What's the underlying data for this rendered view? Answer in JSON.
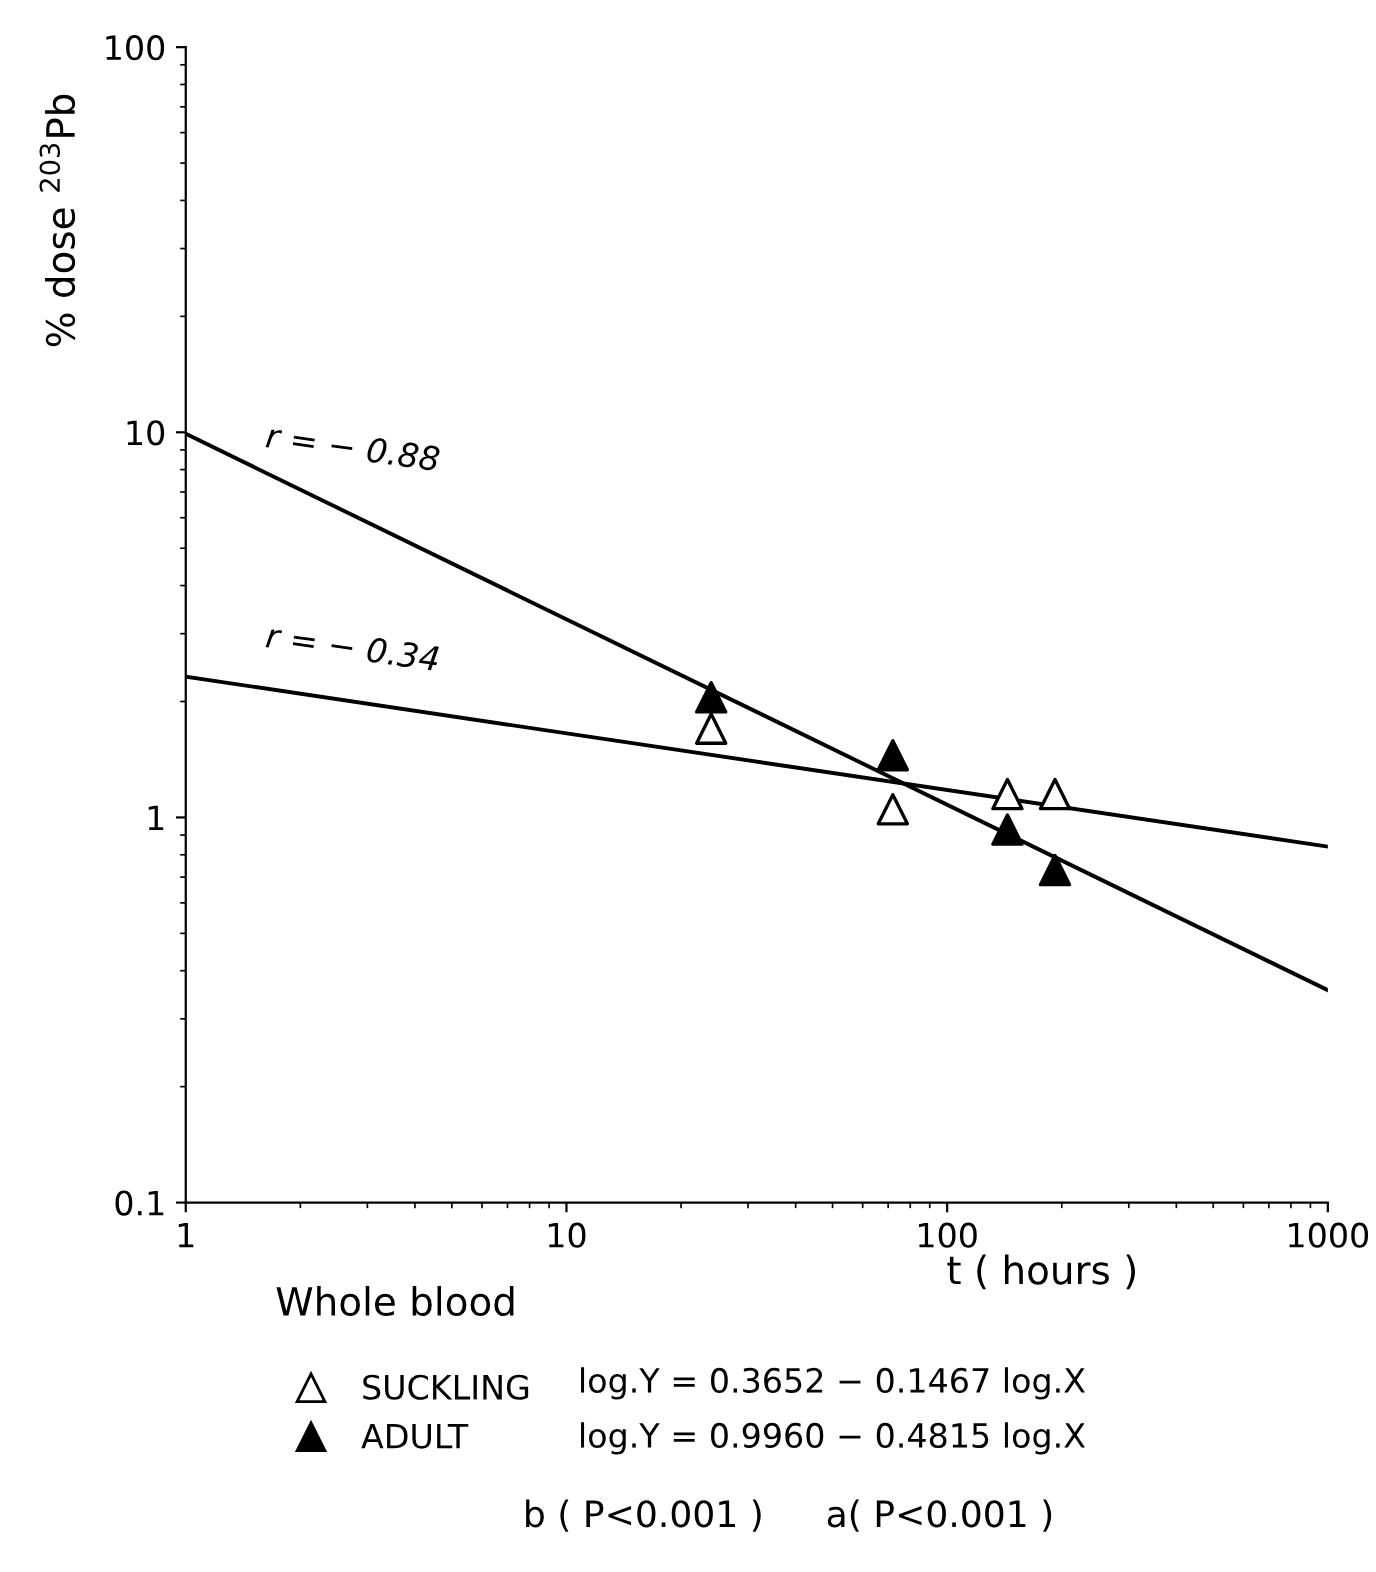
{
  "chart_data": {
    "type": "scatter",
    "ylabel": "% dose $^{203}$Pb",
    "xlabel": "t ( hours )",
    "log": "xy",
    "xlim": [
      1,
      1000
    ],
    "ylim": [
      0.1,
      100
    ],
    "xticks": [
      1,
      10,
      100,
      1000
    ],
    "yticks": [
      0.1,
      1,
      10,
      100
    ],
    "grid": false,
    "legend": "bottom",
    "series": [
      {
        "name": "SUCKLING",
        "marker": "triangle",
        "color": "#ffffff",
        "x": [
          24,
          72,
          144,
          192
        ],
        "values": [
          1.7,
          1.05,
          1.15,
          1.15
        ]
      },
      {
        "name": "ADULT",
        "marker": "triangle",
        "color": "#000000",
        "x": [
          24,
          72,
          144,
          192
        ],
        "values": [
          2.05,
          1.45,
          0.93,
          0.73
        ]
      },
      {
        "type": "line",
        "marker": "none",
        "color": "#000000",
        "x": [
          1,
          1000
        ],
        "values": [
          2.32,
          0.84
        ]
      },
      {
        "type": "line",
        "marker": "none",
        "color": "#000000",
        "x": [
          1,
          1000
        ],
        "values": [
          9.91,
          0.356
        ]
      }
    ],
    "annotations": [
      {
        "text": "r = − 0.88",
        "x": 1.6,
        "y": 7.6
      },
      {
        "text": "r = − 0.34",
        "x": 1.6,
        "y": 2.3
      },
      "Whole blood",
      "log.Y = 0.3652 − 0.1467 log.X",
      "log.Y = 0.9960 − 0.4815 log.X",
      "b ( P<0.001 )",
      "a( P<0.001 )"
    ]
  }
}
